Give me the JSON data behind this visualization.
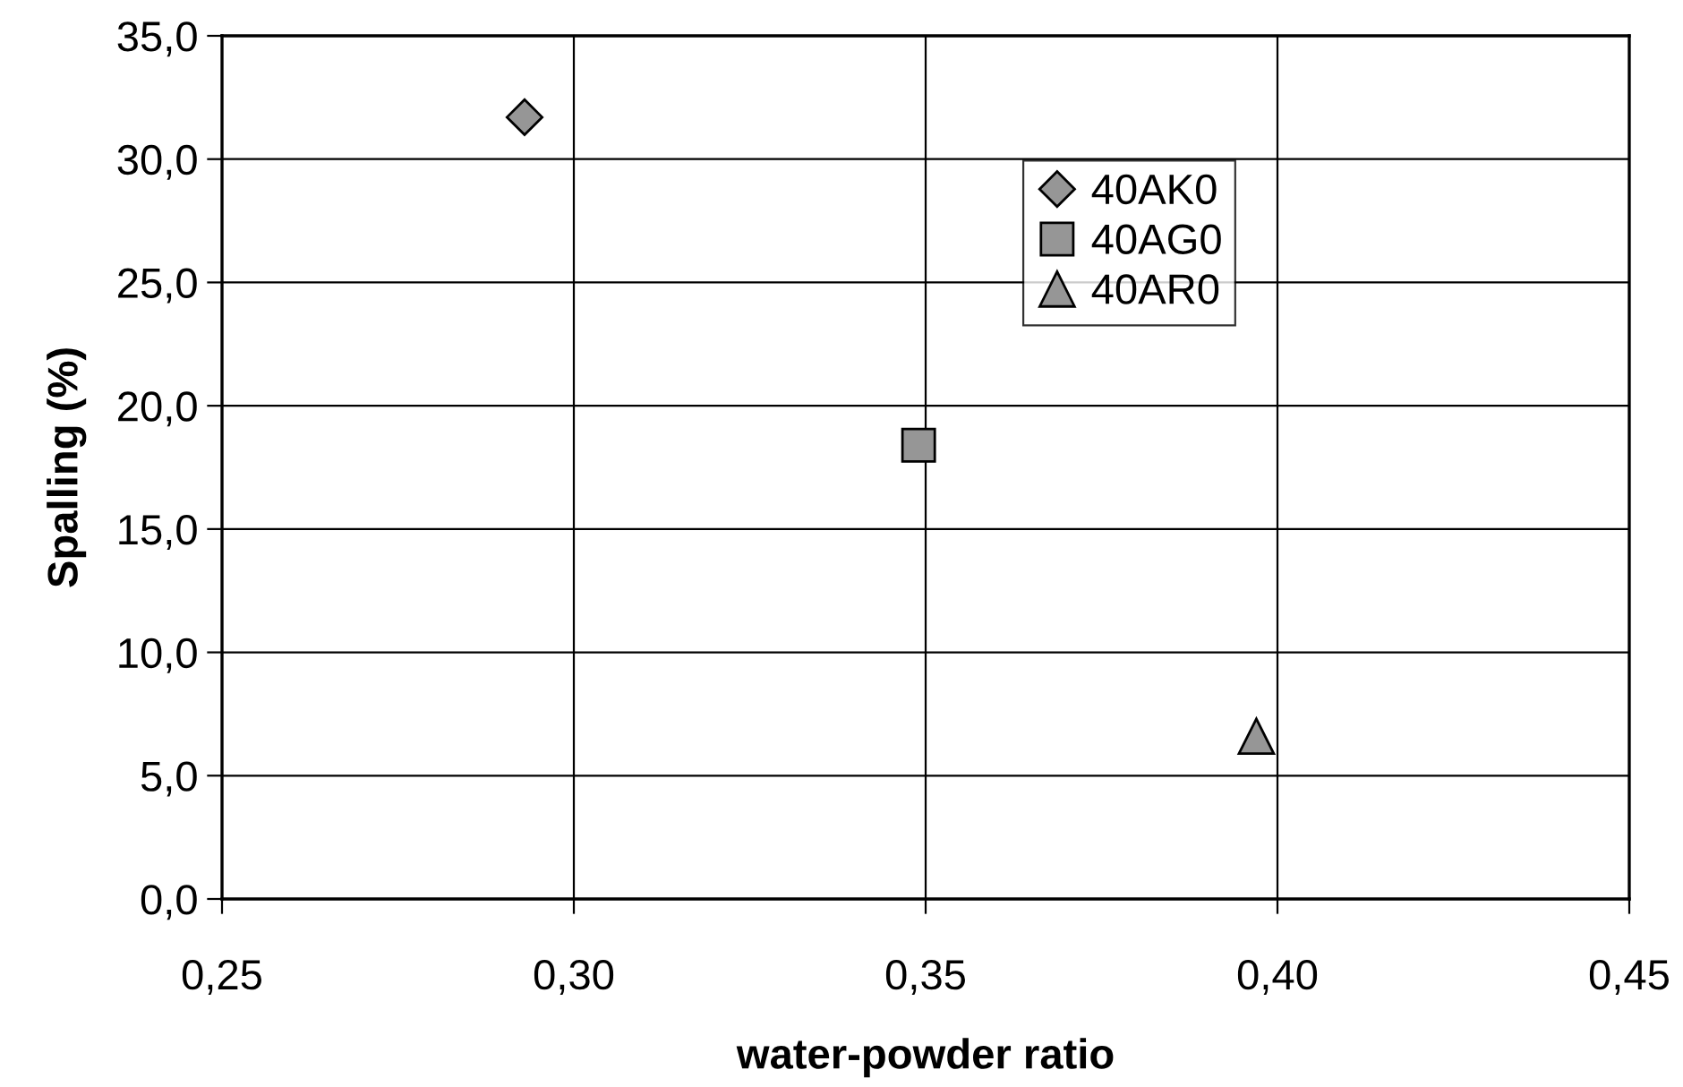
{
  "chart_data": {
    "type": "scatter",
    "xlabel": "water-powder ratio",
    "ylabel": "Spalling (%)",
    "series": [
      {
        "name": "40AK0",
        "color": "#969696",
        "marker": "diamond",
        "x": [
          0.293
        ],
        "values": [
          31.7
        ]
      },
      {
        "name": "40AG0",
        "color": "#969696",
        "marker": "square",
        "x": [
          0.349
        ],
        "values": [
          18.4
        ]
      },
      {
        "name": "40AR0",
        "color": "#969696",
        "marker": "triangle",
        "x": [
          0.397
        ],
        "values": [
          6.6
        ]
      }
    ],
    "xlim": [
      0.25,
      0.45
    ],
    "xticks": [
      {
        "value": 0.25,
        "label": "0,25"
      },
      {
        "value": 0.3,
        "label": "0,30"
      },
      {
        "value": 0.35,
        "label": "0,35"
      },
      {
        "value": 0.4,
        "label": "0,40"
      },
      {
        "value": 0.45,
        "label": "0,45"
      }
    ],
    "ylim": [
      0,
      35
    ],
    "yticks": [
      {
        "value": 0,
        "label": "0,0"
      },
      {
        "value": 5,
        "label": "5,0"
      },
      {
        "value": 10,
        "label": "10,0"
      },
      {
        "value": 15,
        "label": "15,0"
      },
      {
        "value": 20,
        "label": "20,0"
      },
      {
        "value": 25,
        "label": "25,0"
      },
      {
        "value": 30,
        "label": "30,0"
      },
      {
        "value": 35,
        "label": "35,0"
      }
    ],
    "grid": true,
    "legend": "top right"
  }
}
